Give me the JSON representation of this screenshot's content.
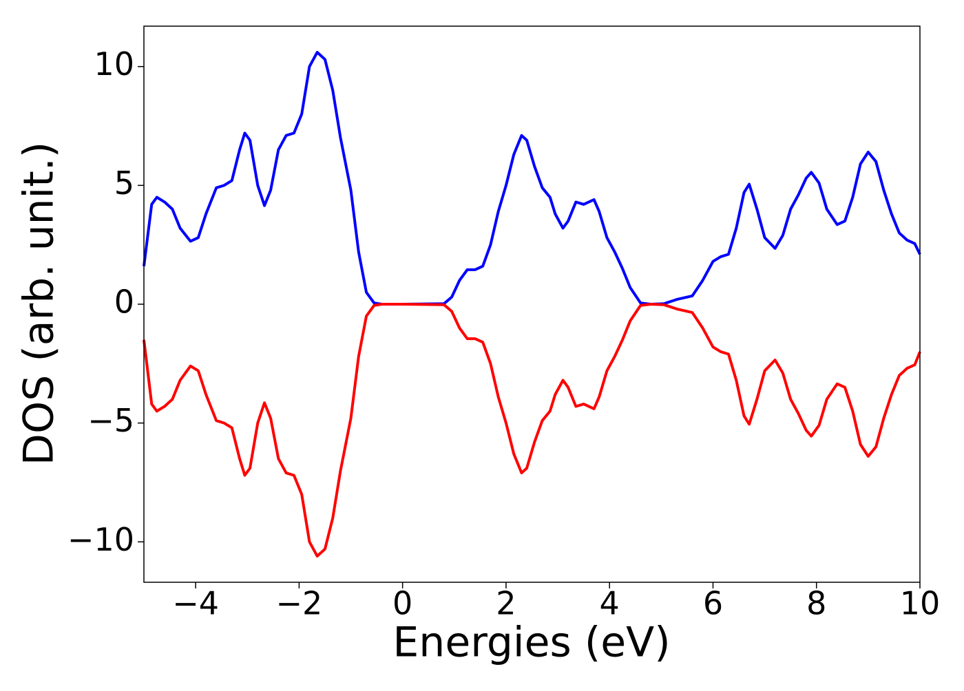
{
  "chart_data": {
    "type": "line",
    "x_label": "Energies (eV)",
    "y_label": "DOS (arb. unit.)",
    "x": [
      -5,
      -4.85,
      -4.75,
      -4.6,
      -4.45,
      -4.3,
      -4.1,
      -3.95,
      -3.8,
      -3.6,
      -3.45,
      -3.3,
      -3.15,
      -3.05,
      -2.95,
      -2.8,
      -2.67,
      -2.55,
      -2.4,
      -2.25,
      -2.1,
      -1.95,
      -1.8,
      -1.65,
      -1.5,
      -1.35,
      -1.2,
      -1.0,
      -0.85,
      -0.7,
      -0.55,
      -0.4,
      0,
      0.8,
      0.95,
      1.1,
      1.25,
      1.4,
      1.55,
      1.7,
      1.85,
      2.0,
      2.15,
      2.3,
      2.4,
      2.55,
      2.7,
      2.85,
      2.95,
      3.1,
      3.2,
      3.35,
      3.5,
      3.7,
      3.8,
      3.95,
      4.1,
      4.25,
      4.4,
      4.6,
      4.8,
      5.05,
      5.3,
      5.6,
      5.8,
      6.0,
      6.15,
      6.3,
      6.45,
      6.6,
      6.7,
      6.85,
      7.0,
      7.2,
      7.35,
      7.5,
      7.65,
      7.8,
      7.9,
      8.05,
      8.2,
      8.4,
      8.55,
      8.7,
      8.85,
      9.0,
      9.15,
      9.3,
      9.45,
      9.6,
      9.75,
      9.9,
      10
    ],
    "series": [
      {
        "color": "#0000ff",
        "values": [
          1.6,
          4.2,
          4.5,
          4.3,
          4.0,
          3.2,
          2.65,
          2.8,
          3.8,
          4.9,
          5.0,
          5.2,
          6.5,
          7.2,
          6.9,
          5.0,
          4.15,
          4.8,
          6.5,
          7.1,
          7.2,
          8.0,
          10.0,
          10.6,
          10.3,
          9.0,
          7.0,
          4.8,
          2.2,
          0.5,
          0.05,
          0,
          0,
          0.02,
          0.3,
          1.0,
          1.45,
          1.45,
          1.6,
          2.5,
          3.9,
          5.0,
          6.3,
          7.1,
          6.9,
          5.8,
          4.9,
          4.5,
          3.8,
          3.2,
          3.5,
          4.3,
          4.2,
          4.4,
          3.9,
          2.8,
          2.2,
          1.5,
          0.7,
          0.05,
          0,
          0.02,
          0.2,
          0.35,
          1.0,
          1.8,
          2.0,
          2.1,
          3.2,
          4.7,
          5.05,
          4.0,
          2.8,
          2.35,
          2.9,
          4.0,
          4.6,
          5.3,
          5.55,
          5.1,
          4.0,
          3.35,
          3.5,
          4.5,
          5.9,
          6.4,
          6.0,
          4.8,
          3.8,
          3.0,
          2.7,
          2.55,
          2.1
        ]
      },
      {
        "color": "#ff0000",
        "values": [
          -1.5,
          -4.2,
          -4.5,
          -4.3,
          -4.0,
          -3.2,
          -2.6,
          -2.8,
          -3.8,
          -4.9,
          -5.0,
          -5.2,
          -6.5,
          -7.2,
          -6.9,
          -5.0,
          -4.15,
          -4.8,
          -6.5,
          -7.1,
          -7.2,
          -8.0,
          -10.0,
          -10.6,
          -10.3,
          -9.0,
          -7.0,
          -4.8,
          -2.2,
          -0.5,
          -0.05,
          0,
          0,
          -0.02,
          -0.3,
          -1.0,
          -1.45,
          -1.45,
          -1.6,
          -2.5,
          -3.9,
          -5.0,
          -6.3,
          -7.1,
          -6.9,
          -5.8,
          -4.9,
          -4.5,
          -3.8,
          -3.2,
          -3.5,
          -4.3,
          -4.2,
          -4.4,
          -3.9,
          -2.8,
          -2.2,
          -1.5,
          -0.7,
          -0.05,
          0,
          -0.02,
          -0.2,
          -0.35,
          -1.0,
          -1.8,
          -2.0,
          -2.1,
          -3.2,
          -4.7,
          -5.05,
          -4.0,
          -2.8,
          -2.35,
          -2.9,
          -4.0,
          -4.6,
          -5.3,
          -5.55,
          -5.1,
          -4.0,
          -3.35,
          -3.5,
          -4.5,
          -5.9,
          -6.4,
          -6.0,
          -4.8,
          -3.8,
          -3.0,
          -2.7,
          -2.55,
          -2.0
        ]
      }
    ],
    "xlim": [
      -5,
      10
    ],
    "xticks": [
      {
        "value": -4,
        "label": "−4"
      },
      {
        "value": -2,
        "label": "−2"
      },
      0,
      2,
      4,
      6,
      8,
      10
    ],
    "ylim": [
      -11.7,
      11.7
    ],
    "yticks": [
      {
        "value": -10,
        "label": "−10"
      },
      {
        "value": -5,
        "label": "−5"
      },
      0,
      5,
      10
    ],
    "grid": false
  }
}
